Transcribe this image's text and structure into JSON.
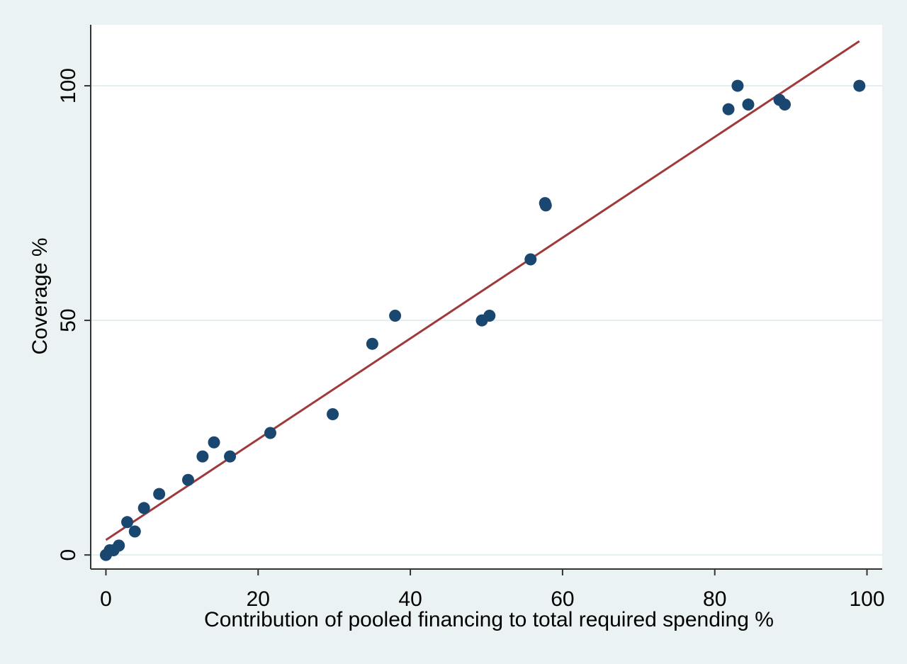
{
  "chart_data": {
    "type": "scatter",
    "title": "",
    "xlabel": "Contribution of pooled financing to total required spending %",
    "ylabel": "Coverage %",
    "xlim": [
      -2,
      102
    ],
    "ylim": [
      -3,
      113
    ],
    "xticks": [
      0,
      20,
      40,
      60,
      80,
      100
    ],
    "yticks": [
      0,
      50,
      100
    ],
    "grid": "horizontal",
    "legend": "none",
    "colors": {
      "background": "#eaf2f3",
      "plot_area": "#ffffff",
      "gridline": "#e3eef0",
      "axis": "#333333",
      "points": "#1a476f",
      "fit_line": "#a03a3a"
    },
    "series": [
      {
        "kind": "points",
        "points": [
          [
            0,
            0
          ],
          [
            0.5,
            1
          ],
          [
            1,
            1
          ],
          [
            1.7,
            2
          ],
          [
            2.8,
            7
          ],
          [
            3.8,
            5
          ],
          [
            5,
            10
          ],
          [
            7,
            13
          ],
          [
            10.8,
            16
          ],
          [
            12.7,
            21
          ],
          [
            14.2,
            24
          ],
          [
            16.3,
            21
          ],
          [
            21.6,
            26
          ],
          [
            29.8,
            30
          ],
          [
            35,
            45
          ],
          [
            38,
            51
          ],
          [
            49.4,
            50
          ],
          [
            50.4,
            51
          ],
          [
            55.8,
            63
          ],
          [
            57.7,
            75
          ],
          [
            57.8,
            74.5
          ],
          [
            81.8,
            95
          ],
          [
            83,
            100
          ],
          [
            84.4,
            96
          ],
          [
            88.5,
            97
          ],
          [
            89.2,
            96
          ],
          [
            99,
            100
          ]
        ]
      },
      {
        "kind": "fitted-line",
        "from": [
          0,
          3.2
        ],
        "to": [
          99,
          109.5
        ]
      }
    ]
  }
}
